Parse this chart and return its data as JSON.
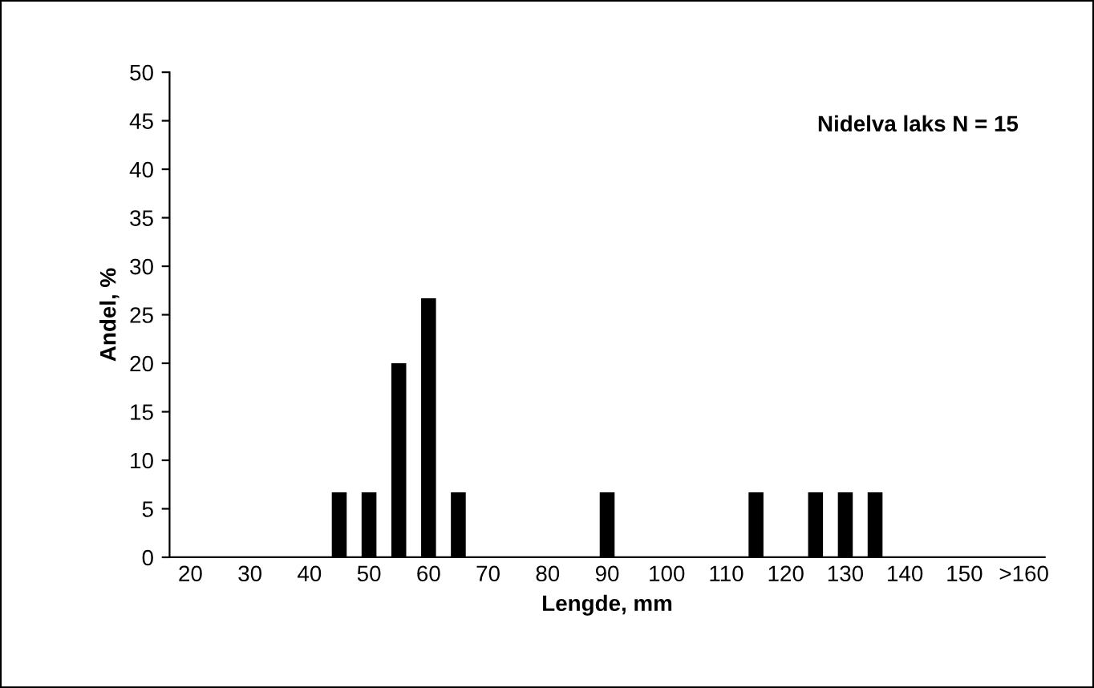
{
  "chart_data": {
    "type": "bar",
    "xlabel": "Lengde, mm",
    "ylabel": "Andel, %",
    "annotations": [
      "Nidelva laks N = 15"
    ],
    "categories": [
      "20",
      null,
      "30",
      null,
      "40",
      null,
      "50",
      null,
      "60",
      null,
      "70",
      null,
      "80",
      null,
      "90",
      null,
      "100",
      null,
      "110",
      null,
      "120",
      null,
      "130",
      null,
      "140",
      null,
      "150",
      null,
      ">160"
    ],
    "values": [
      0,
      0,
      0,
      0,
      0,
      6.7,
      6.7,
      20,
      26.7,
      6.7,
      0,
      0,
      0,
      0,
      6.7,
      0,
      0,
      0,
      0,
      6.7,
      0,
      6.7,
      6.7,
      6.7,
      0,
      0,
      0,
      0,
      0
    ],
    "color": "#000000",
    "ylim": [
      0,
      50
    ],
    "yticks": [
      0,
      5,
      10,
      15,
      20,
      25,
      30,
      35,
      40,
      45,
      50
    ],
    "grid": false,
    "legend": false
  }
}
